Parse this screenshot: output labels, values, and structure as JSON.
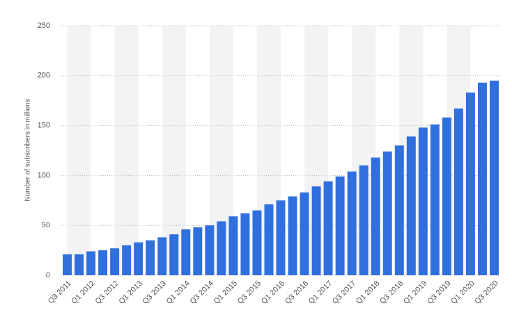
{
  "chart_data": {
    "type": "bar",
    "y_label": "Number of subscribers in millions",
    "categories": [
      "Q3 2011",
      null,
      "Q1 2012",
      null,
      "Q3 2012",
      null,
      "Q1 2013",
      null,
      "Q3 2013",
      null,
      "Q1 2014",
      null,
      "Q3 2014",
      null,
      "Q1 2015",
      null,
      "Q3 2015",
      null,
      "Q1 2016",
      null,
      "Q3 2016",
      null,
      "Q1 2017",
      null,
      "Q3 2017",
      null,
      "Q1 2018",
      null,
      "Q3 2018",
      null,
      "Q1 2019",
      null,
      "Q3 2019",
      null,
      "Q1 2020",
      null,
      "Q3 2020"
    ],
    "values": [
      21,
      21,
      24,
      25,
      27,
      30,
      33,
      35,
      38,
      41,
      46,
      48,
      50,
      54,
      59,
      62,
      65,
      71,
      75,
      79,
      83,
      89,
      94,
      99,
      104,
      110,
      118,
      124,
      130,
      139,
      148,
      151,
      158,
      167,
      183,
      193,
      195
    ],
    "color": "#2f6fde",
    "ylim": [
      0,
      250
    ],
    "yticks": [
      0,
      50,
      100,
      150,
      200,
      250
    ],
    "grid": true
  }
}
